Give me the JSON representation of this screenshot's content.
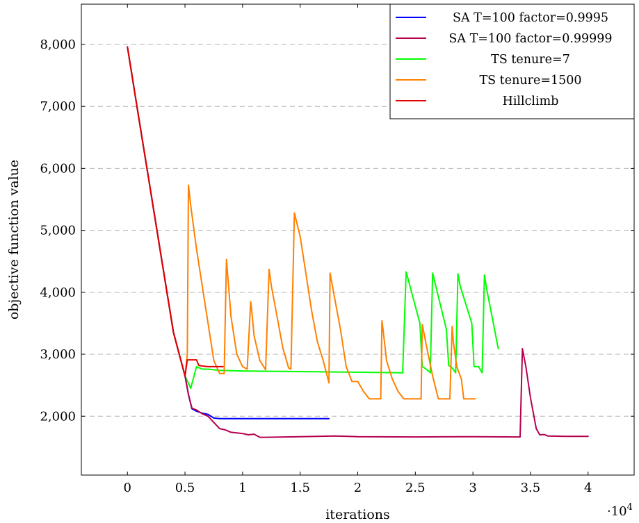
{
  "chart_data": {
    "type": "line",
    "xlabel": "iterations",
    "ylabel": "objective function value",
    "x_multiplier_label": "·10",
    "x_multiplier_exp": "4",
    "xlim": [
      -0.4,
      4.4
    ],
    "ylim": [
      1050,
      8650
    ],
    "x_ticks": [
      0,
      0.5,
      1,
      1.5,
      2,
      2.5,
      3,
      3.5,
      4
    ],
    "x_tick_labels": [
      "0",
      "0.5",
      "1",
      "1.5",
      "2",
      "2.5",
      "3",
      "3.5",
      "4"
    ],
    "y_ticks": [
      2000,
      3000,
      4000,
      5000,
      6000,
      7000,
      8000
    ],
    "y_tick_labels": [
      "2,000",
      "3,000",
      "4,000",
      "5,000",
      "6,000",
      "7,000",
      "8,000"
    ],
    "grid": "y-dashed",
    "legend_position": "top-right",
    "series": [
      {
        "name": "SA T=100 factor=0.9995",
        "color": "#0000ff",
        "x": [
          0,
          0.1,
          0.2,
          0.3,
          0.4,
          0.5,
          0.53,
          0.56,
          0.6,
          0.65,
          0.7,
          0.75,
          0.8,
          1.0,
          1.2,
          1.5,
          1.75
        ],
        "y": [
          7960,
          6800,
          5650,
          4500,
          3350,
          2650,
          2350,
          2120,
          2080,
          2050,
          2030,
          1970,
          1960,
          1960,
          1960,
          1960,
          1960
        ]
      },
      {
        "name": "SA T=100 factor=0.99999",
        "color": "#b5004e",
        "x": [
          0,
          0.1,
          0.2,
          0.3,
          0.4,
          0.5,
          0.53,
          0.56,
          0.6,
          0.65,
          0.7,
          0.75,
          0.8,
          0.85,
          0.9,
          0.95,
          1.0,
          1.05,
          1.1,
          1.15,
          1.2,
          1.5,
          1.8,
          2.0,
          2.5,
          3.0,
          3.41,
          3.43,
          3.46,
          3.5,
          3.55,
          3.58,
          3.62,
          3.65,
          3.8,
          4.0
        ],
        "y": [
          7960,
          6800,
          5650,
          4500,
          3350,
          2650,
          2350,
          2130,
          2100,
          2040,
          2000,
          1900,
          1800,
          1780,
          1740,
          1730,
          1720,
          1700,
          1710,
          1660,
          1660,
          1670,
          1680,
          1670,
          1665,
          1670,
          1665,
          3090,
          2800,
          2300,
          1800,
          1700,
          1705,
          1680,
          1675,
          1675
        ]
      },
      {
        "name": "TS tenure=7",
        "color": "#00ff00",
        "x": [
          0,
          0.1,
          0.2,
          0.3,
          0.4,
          0.5,
          0.55,
          0.6,
          0.65,
          0.7,
          0.8,
          1.0,
          1.5,
          2.0,
          2.39,
          2.42,
          2.54,
          2.56,
          2.58,
          2.62,
          2.63,
          2.65,
          2.77,
          2.79,
          2.82,
          2.85,
          2.87,
          2.89,
          2.99,
          3.01,
          3.05,
          3.08,
          3.1,
          3.12,
          3.22
        ],
        "y": [
          7960,
          6800,
          5650,
          4500,
          3350,
          2650,
          2450,
          2800,
          2760,
          2760,
          2740,
          2730,
          2720,
          2710,
          2700,
          4330,
          3500,
          2800,
          2780,
          2720,
          2700,
          4310,
          3400,
          2820,
          2780,
          2700,
          4300,
          4100,
          3500,
          2800,
          2800,
          2700,
          4280,
          4050,
          3090
        ]
      },
      {
        "name": "TS tenure=1500",
        "color": "#ff8000",
        "x": [
          0,
          0.1,
          0.2,
          0.3,
          0.4,
          0.5,
          0.52,
          0.53,
          0.55,
          0.6,
          0.65,
          0.7,
          0.75,
          0.8,
          0.84,
          0.86,
          0.87,
          0.9,
          0.95,
          1.0,
          1.04,
          1.07,
          1.08,
          1.1,
          1.15,
          1.2,
          1.23,
          1.25,
          1.3,
          1.35,
          1.4,
          1.42,
          1.45,
          1.5,
          1.55,
          1.6,
          1.65,
          1.7,
          1.75,
          1.76,
          1.8,
          1.85,
          1.9,
          1.95,
          2.0,
          2.05,
          2.1,
          2.15,
          2.2,
          2.21,
          2.22,
          2.25,
          2.3,
          2.35,
          2.4,
          2.45,
          2.5,
          2.55,
          2.56,
          2.6,
          2.65,
          2.7,
          2.75,
          2.8,
          2.82,
          2.83,
          2.86,
          2.9,
          2.92,
          2.95,
          3.0,
          3.02
        ],
        "y": [
          7960,
          6800,
          5650,
          4500,
          3350,
          2650,
          3000,
          5730,
          5400,
          4700,
          4100,
          3500,
          2900,
          2690,
          2690,
          4530,
          4300,
          3600,
          3000,
          2800,
          2760,
          3850,
          3700,
          3300,
          2900,
          2750,
          4370,
          4100,
          3600,
          3100,
          2780,
          2760,
          5280,
          4900,
          4300,
          3700,
          3200,
          2900,
          2540,
          4310,
          3900,
          3400,
          2800,
          2560,
          2560,
          2400,
          2280,
          2280,
          2280,
          3540,
          3400,
          2900,
          2600,
          2400,
          2280,
          2280,
          2280,
          2280,
          3480,
          3100,
          2650,
          2280,
          2280,
          2280,
          3450,
          3200,
          2800,
          2600,
          2280,
          2280,
          2280,
          2280
        ]
      },
      {
        "name": "Hillclimb",
        "color": "#e00000",
        "x": [
          0,
          0.1,
          0.2,
          0.3,
          0.4,
          0.5,
          0.52,
          0.6,
          0.62,
          0.65,
          0.7,
          0.75,
          0.8,
          0.83
        ],
        "y": [
          7960,
          6800,
          5650,
          4500,
          3350,
          2650,
          2910,
          2910,
          2820,
          2810,
          2800,
          2800,
          2800,
          2800
        ]
      }
    ]
  }
}
